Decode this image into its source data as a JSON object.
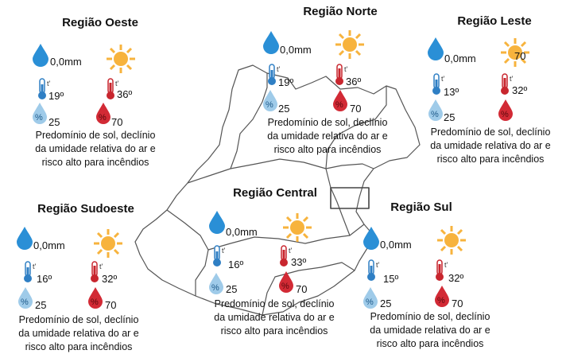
{
  "regions": [
    {
      "id": "oeste",
      "name": "Região Oeste",
      "rain": "0,0mm",
      "temp_min": "19º",
      "temp_max": "36º",
      "hum_min": "25",
      "hum_max": "70",
      "desc_lines": [
        "Predomínio de sol, declínio",
        "da umidade relativa do ar e",
        "risco alto para incêndios"
      ]
    },
    {
      "id": "norte",
      "name": "Região Norte",
      "rain": "0,0mm",
      "temp_min": "19º",
      "temp_max": "36º",
      "hum_min": "25",
      "hum_max": "70",
      "desc_lines": [
        "Predomínio de sol, declínio",
        "da umidade relativa do ar e",
        "risco alto para incêndios"
      ]
    },
    {
      "id": "leste",
      "name": "Região Leste",
      "rain": "0,0mm",
      "temp_min": "13º",
      "temp_max": "32º",
      "hum_min": "25",
      "hum_max": "70",
      "desc_lines": [
        "Predomínio de sol, declínio",
        "da umidade relativa do ar e",
        "risco alto para incêndios"
      ]
    },
    {
      "id": "sudoeste",
      "name": "Região Sudoeste",
      "rain": "0,0mm",
      "temp_min": "16º",
      "temp_max": "32º",
      "hum_min": "25",
      "hum_max": "70",
      "desc_lines": [
        "Predomínio de sol, declínio",
        "da umidade relativa do ar e",
        "risco alto para incêndios"
      ]
    },
    {
      "id": "central",
      "name": "Região Central",
      "rain": "0,0mm",
      "temp_min": "16º",
      "temp_max": "33º",
      "hum_min": "25",
      "hum_max": "70",
      "desc_lines": [
        "Predomínio de sol, declínio",
        "da umidade relativa do ar e",
        "risco alto para incêndios"
      ]
    },
    {
      "id": "sul",
      "name": "Região Sul",
      "rain": "0,0mm",
      "temp_min": "15º",
      "temp_max": "32º",
      "hum_min": "25",
      "hum_max": "70",
      "desc_lines": [
        "Predomínio de sol, declínio",
        "da umidade relativa do ar e",
        "risco alto para incêndios"
      ]
    }
  ],
  "symbols": {
    "thermometer_mark": "t'",
    "humidity_mark": "%"
  },
  "icons": {
    "rain": "raindrop-icon",
    "sun": "sun-icon",
    "thermo_min": "thermometer-cold-icon",
    "thermo_max": "thermometer-hot-icon",
    "hum_min": "humidity-low-icon",
    "hum_max": "humidity-high-icon"
  },
  "colors": {
    "rain_drop": "#2a8fd6",
    "sun": "#f7b33d",
    "thermo_cold": "#2f7fc4",
    "thermo_hot": "#c8262e",
    "hum_low": "#9fcbe9",
    "hum_high": "#d22a35",
    "map_outline": "#555555"
  }
}
